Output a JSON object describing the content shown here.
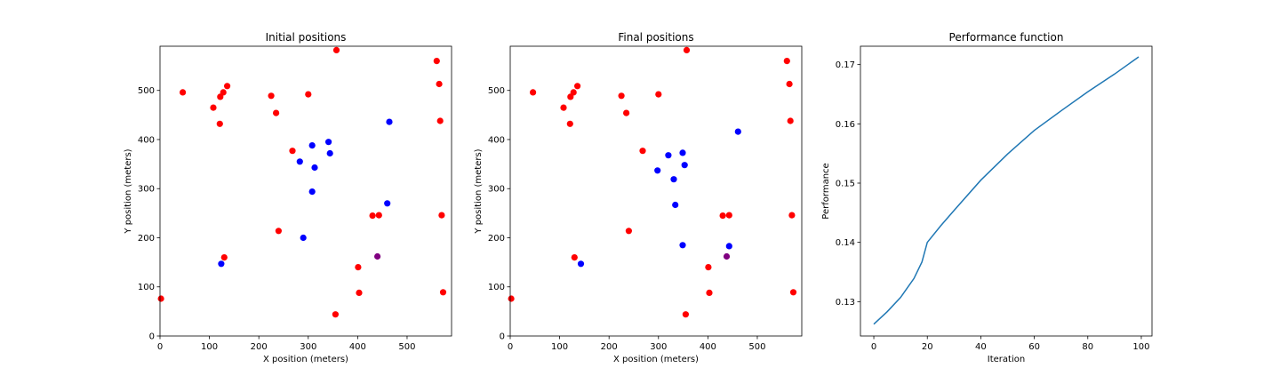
{
  "chart_data": [
    {
      "type": "scatter",
      "title": "Initial positions",
      "xlabel": "X position (meters)",
      "ylabel": "Y position (meters)",
      "xlim": [
        0,
        590
      ],
      "ylim": [
        0,
        590
      ],
      "xticks": [
        0,
        100,
        200,
        300,
        400,
        500
      ],
      "yticks": [
        0,
        100,
        200,
        300,
        400,
        500
      ],
      "grid": false,
      "series": [
        {
          "color": "#ff0000",
          "points": [
            [
              2,
              76
            ],
            [
              46,
              496
            ],
            [
              108,
              465
            ],
            [
              122,
              487
            ],
            [
              128,
              496
            ],
            [
              136,
              509
            ],
            [
              121,
              432
            ],
            [
              130,
              160
            ],
            [
              225,
              489
            ],
            [
              235,
              454
            ],
            [
              240,
              214
            ],
            [
              268,
              377
            ],
            [
              300,
              492
            ],
            [
              357,
              582
            ],
            [
              355,
              44
            ],
            [
              401,
              140
            ],
            [
              403,
              88
            ],
            [
              430,
              245
            ],
            [
              443,
              246
            ],
            [
              560,
              560
            ],
            [
              565,
              513
            ],
            [
              567,
              438
            ],
            [
              570,
              246
            ],
            [
              573,
              89
            ]
          ]
        },
        {
          "color": "#0000ff",
          "points": [
            [
              124,
              147
            ],
            [
              290,
              200
            ],
            [
              283,
              355
            ],
            [
              308,
              294
            ],
            [
              308,
              388
            ],
            [
              313,
              343
            ],
            [
              341,
              395
            ],
            [
              344,
              372
            ],
            [
              460,
              270
            ],
            [
              464,
              436
            ]
          ]
        },
        {
          "color": "#800080",
          "points": [
            [
              440,
              162
            ]
          ]
        }
      ]
    },
    {
      "type": "scatter",
      "title": "Final positions",
      "xlabel": "X position (meters)",
      "ylabel": "Y position (meters)",
      "xlim": [
        0,
        590
      ],
      "ylim": [
        0,
        590
      ],
      "xticks": [
        0,
        100,
        200,
        300,
        400,
        500
      ],
      "yticks": [
        0,
        100,
        200,
        300,
        400,
        500
      ],
      "grid": false,
      "series": [
        {
          "color": "#ff0000",
          "points": [
            [
              2,
              76
            ],
            [
              46,
              496
            ],
            [
              108,
              465
            ],
            [
              122,
              487
            ],
            [
              128,
              496
            ],
            [
              136,
              509
            ],
            [
              121,
              432
            ],
            [
              130,
              160
            ],
            [
              225,
              489
            ],
            [
              235,
              454
            ],
            [
              240,
              214
            ],
            [
              268,
              377
            ],
            [
              300,
              492
            ],
            [
              357,
              582
            ],
            [
              355,
              44
            ],
            [
              401,
              140
            ],
            [
              403,
              88
            ],
            [
              430,
              245
            ],
            [
              443,
              246
            ],
            [
              560,
              560
            ],
            [
              565,
              513
            ],
            [
              567,
              438
            ],
            [
              570,
              246
            ],
            [
              573,
              89
            ]
          ]
        },
        {
          "color": "#0000ff",
          "points": [
            [
              143,
              147
            ],
            [
              298,
              337
            ],
            [
              320,
              368
            ],
            [
              331,
              319
            ],
            [
              334,
              267
            ],
            [
              349,
              373
            ],
            [
              349,
              185
            ],
            [
              353,
              348
            ],
            [
              443,
              183
            ],
            [
              461,
              416
            ]
          ]
        },
        {
          "color": "#800080",
          "points": [
            [
              438,
              162
            ]
          ]
        }
      ]
    },
    {
      "type": "line",
      "title": "Performance function",
      "xlabel": "Iteration",
      "ylabel": "Performance",
      "xlim": [
        -5,
        104
      ],
      "ylim": [
        0.1242,
        0.1731
      ],
      "xticks": [
        0,
        20,
        40,
        60,
        80,
        100
      ],
      "yticks": [
        0.13,
        0.14,
        0.15,
        0.16,
        0.17
      ],
      "ytick_labels": [
        "0.13",
        "0.14",
        "0.15",
        "0.16",
        "0.17"
      ],
      "grid": false,
      "series": [
        {
          "color": "#1f77b4",
          "x": [
            0,
            5,
            10,
            15,
            18,
            20,
            25,
            30,
            40,
            50,
            60,
            70,
            80,
            90,
            99
          ],
          "y": [
            0.1262,
            0.1283,
            0.1307,
            0.1339,
            0.1367,
            0.14,
            0.1428,
            0.1454,
            0.1505,
            0.1549,
            0.1589,
            0.1622,
            0.1654,
            0.1684,
            0.1713
          ]
        }
      ]
    }
  ]
}
